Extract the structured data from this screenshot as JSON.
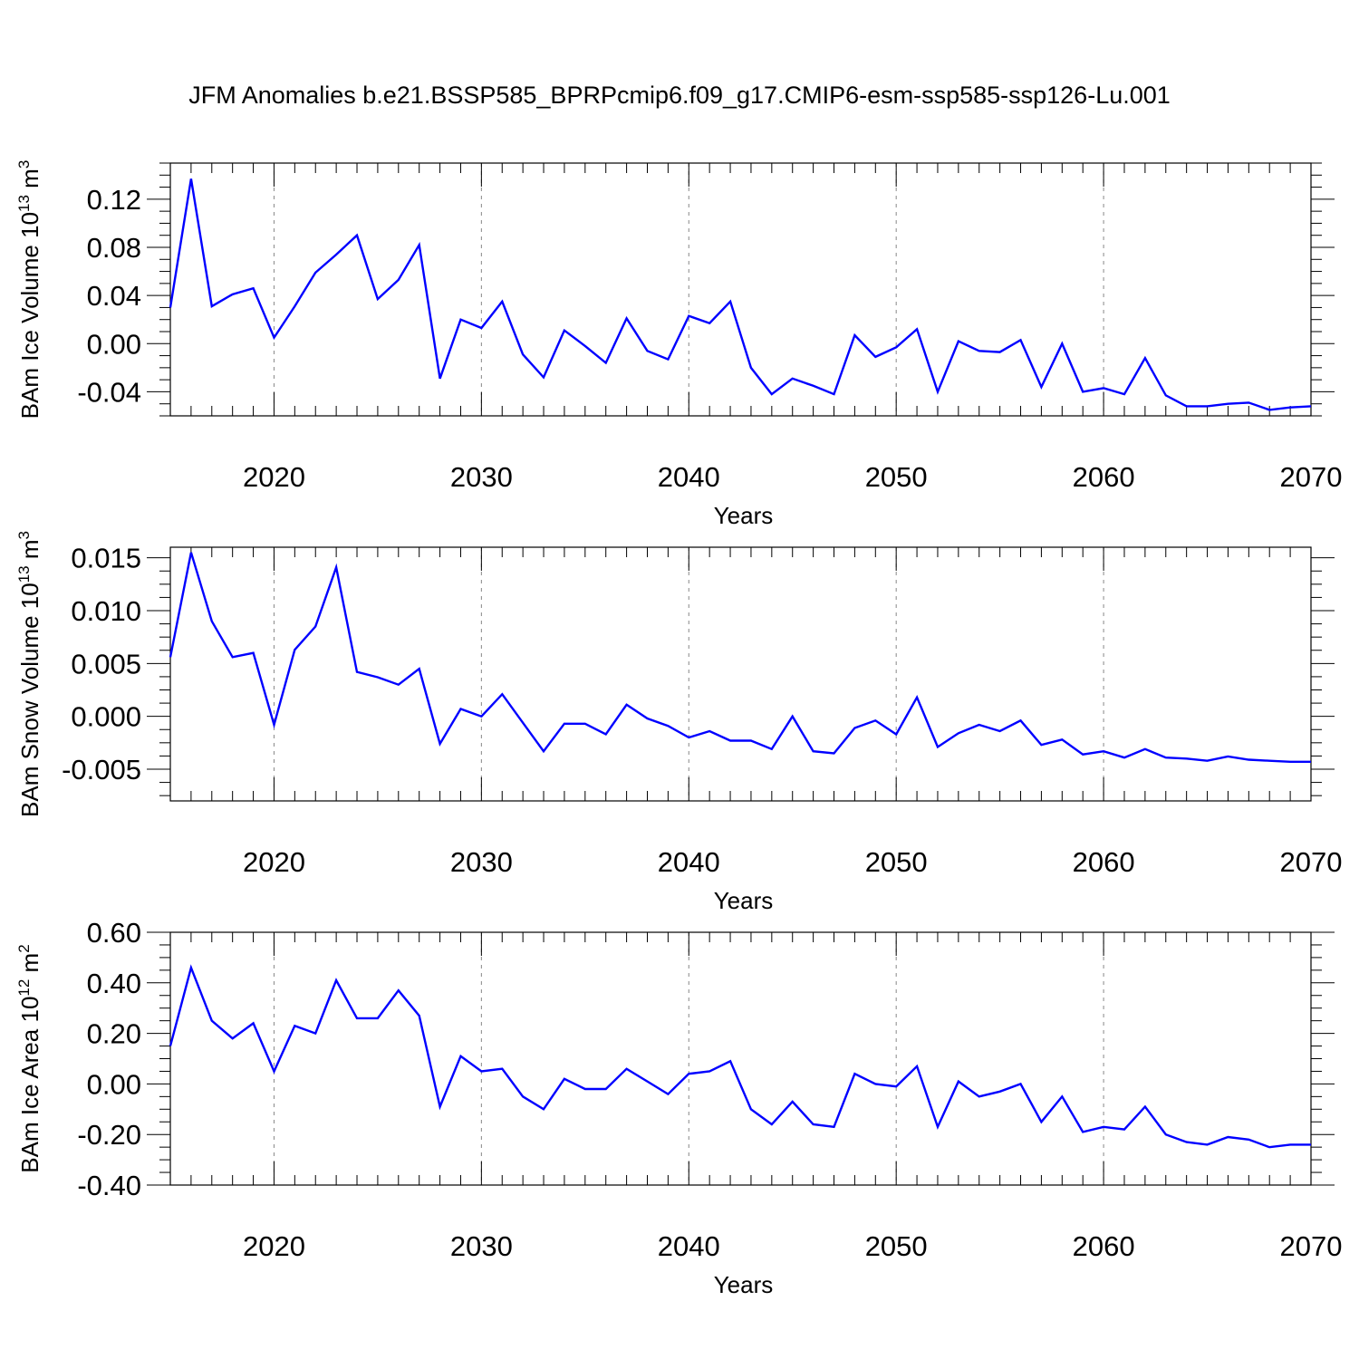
{
  "figure": {
    "title": "JFM Anomalies b.e21.BSSP585_BPRPcmip6.f09_g17.CMIP6-esm-ssp585-ssp126-Lu.001"
  },
  "colors": {
    "line": "#0000ff",
    "axes": "#000000",
    "grid": "#888888",
    "background": "#ffffff"
  },
  "chart_data": [
    {
      "type": "line",
      "title": "",
      "xlabel": "Years",
      "ylabel": "BAm Ice Volume 10",
      "ylabel_sup": "13",
      "ylabel_unit": " m",
      "ylabel_unit_sup": "3",
      "xlim": [
        2015,
        2070
      ],
      "ylim": [
        -0.06,
        0.15
      ],
      "xticks": [
        2020,
        2030,
        2040,
        2050,
        2060,
        2070
      ],
      "yticks": [
        -0.04,
        0.0,
        0.04,
        0.08,
        0.12
      ],
      "ytick_labels": [
        "-0.04",
        "0.00",
        "0.04",
        "0.08",
        "0.12"
      ],
      "grid": "vertical dashed at major x ticks",
      "series": [
        {
          "x": [
            2015,
            2016,
            2017,
            2018,
            2019,
            2020,
            2021,
            2022,
            2023,
            2024,
            2025,
            2026,
            2027,
            2028,
            2029,
            2030,
            2031,
            2032,
            2033,
            2034,
            2035,
            2036,
            2037,
            2038,
            2039,
            2040,
            2041,
            2042,
            2043,
            2044,
            2045,
            2046,
            2047,
            2048,
            2049,
            2050,
            2051,
            2052,
            2053,
            2054,
            2055,
            2056,
            2057,
            2058,
            2059,
            2060,
            2061,
            2062,
            2063,
            2064,
            2065,
            2066,
            2067,
            2068,
            2069,
            2070
          ],
          "values": [
            0.03,
            0.137,
            0.031,
            0.041,
            0.046,
            0.005,
            0.031,
            0.059,
            0.074,
            0.09,
            0.037,
            0.053,
            0.082,
            -0.029,
            0.02,
            0.013,
            0.035,
            -0.009,
            -0.028,
            0.011,
            -0.002,
            -0.016,
            0.021,
            -0.006,
            -0.013,
            0.023,
            0.017,
            0.035,
            -0.02,
            -0.042,
            -0.029,
            -0.035,
            -0.042,
            0.007,
            -0.011,
            -0.003,
            0.012,
            -0.04,
            0.002,
            -0.006,
            -0.007,
            0.003,
            -0.036,
            0.0,
            -0.04,
            -0.037,
            -0.042,
            -0.012,
            -0.043,
            -0.052,
            -0.052,
            -0.05,
            -0.049,
            -0.055,
            -0.053,
            -0.052
          ]
        }
      ]
    },
    {
      "type": "line",
      "title": "",
      "xlabel": "Years",
      "ylabel": "BAm Snow Volume 10",
      "ylabel_sup": "13",
      "ylabel_unit": " m",
      "ylabel_unit_sup": "3",
      "xlim": [
        2015,
        2070
      ],
      "ylim": [
        -0.008,
        0.016
      ],
      "xticks": [
        2020,
        2030,
        2040,
        2050,
        2060,
        2070
      ],
      "yticks": [
        -0.005,
        0.0,
        0.005,
        0.01,
        0.015
      ],
      "ytick_labels": [
        "-0.005",
        "0.000",
        "0.005",
        "0.010",
        "0.015"
      ],
      "grid": "vertical dashed at major x ticks",
      "series": [
        {
          "x": [
            2015,
            2016,
            2017,
            2018,
            2019,
            2020,
            2021,
            2022,
            2023,
            2024,
            2025,
            2026,
            2027,
            2028,
            2029,
            2030,
            2031,
            2032,
            2033,
            2034,
            2035,
            2036,
            2037,
            2038,
            2039,
            2040,
            2041,
            2042,
            2043,
            2044,
            2045,
            2046,
            2047,
            2048,
            2049,
            2050,
            2051,
            2052,
            2053,
            2054,
            2055,
            2056,
            2057,
            2058,
            2059,
            2060,
            2061,
            2062,
            2063,
            2064,
            2065,
            2066,
            2067,
            2068,
            2069,
            2070
          ],
          "values": [
            0.0056,
            0.0155,
            0.009,
            0.0056,
            0.006,
            -0.0008,
            0.0063,
            0.0085,
            0.0141,
            0.0042,
            0.0037,
            0.003,
            0.0045,
            -0.0026,
            0.0007,
            0.0,
            0.0021,
            -0.0006,
            -0.0033,
            -0.0007,
            -0.0007,
            -0.0017,
            0.0011,
            -0.0002,
            -0.0009,
            -0.002,
            -0.0014,
            -0.0023,
            -0.0023,
            -0.0031,
            0.0,
            -0.0033,
            -0.0035,
            -0.0011,
            -0.0004,
            -0.0017,
            0.0018,
            -0.0029,
            -0.0016,
            -0.0008,
            -0.0014,
            -0.0004,
            -0.0027,
            -0.0022,
            -0.0036,
            -0.0033,
            -0.0039,
            -0.0031,
            -0.0039,
            -0.004,
            -0.0042,
            -0.0038,
            -0.0041,
            -0.0042,
            -0.0043,
            -0.0043
          ]
        }
      ]
    },
    {
      "type": "line",
      "title": "",
      "xlabel": "Years",
      "ylabel": "BAm Ice Area 10",
      "ylabel_sup": "12",
      "ylabel_unit": " m",
      "ylabel_unit_sup": "2",
      "xlim": [
        2015,
        2070
      ],
      "ylim": [
        -0.4,
        0.6
      ],
      "xticks": [
        2020,
        2030,
        2040,
        2050,
        2060,
        2070
      ],
      "yticks": [
        -0.4,
        -0.2,
        0.0,
        0.2,
        0.4,
        0.6
      ],
      "ytick_labels": [
        "-0.40",
        "-0.20",
        "0.00",
        "0.20",
        "0.40",
        "0.60"
      ],
      "grid": "vertical dashed at major x ticks",
      "series": [
        {
          "x": [
            2015,
            2016,
            2017,
            2018,
            2019,
            2020,
            2021,
            2022,
            2023,
            2024,
            2025,
            2026,
            2027,
            2028,
            2029,
            2030,
            2031,
            2032,
            2033,
            2034,
            2035,
            2036,
            2037,
            2038,
            2039,
            2040,
            2041,
            2042,
            2043,
            2044,
            2045,
            2046,
            2047,
            2048,
            2049,
            2050,
            2051,
            2052,
            2053,
            2054,
            2055,
            2056,
            2057,
            2058,
            2059,
            2060,
            2061,
            2062,
            2063,
            2064,
            2065,
            2066,
            2067,
            2068,
            2069,
            2070
          ],
          "values": [
            0.15,
            0.46,
            0.25,
            0.18,
            0.24,
            0.05,
            0.23,
            0.2,
            0.41,
            0.26,
            0.26,
            0.37,
            0.27,
            -0.09,
            0.11,
            0.05,
            0.06,
            -0.05,
            -0.1,
            0.02,
            -0.02,
            -0.02,
            0.06,
            0.01,
            -0.04,
            0.04,
            0.05,
            0.09,
            -0.1,
            -0.16,
            -0.07,
            -0.16,
            -0.17,
            0.04,
            0.0,
            -0.01,
            0.07,
            -0.17,
            0.01,
            -0.05,
            -0.03,
            0.0,
            -0.15,
            -0.05,
            -0.19,
            -0.17,
            -0.18,
            -0.09,
            -0.2,
            -0.23,
            -0.24,
            -0.21,
            -0.22,
            -0.25,
            -0.24,
            -0.24
          ]
        }
      ]
    }
  ]
}
